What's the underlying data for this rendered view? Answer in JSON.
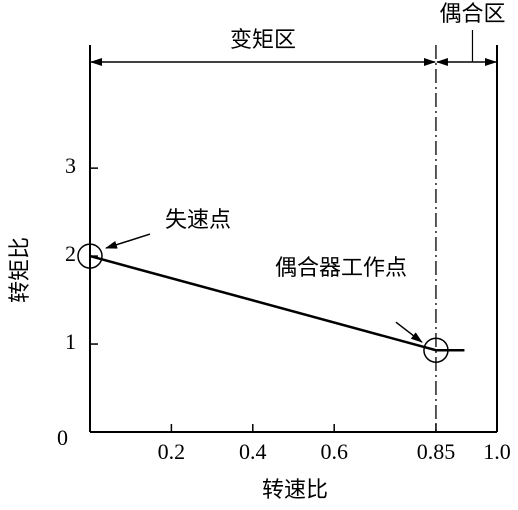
{
  "chart_data": {
    "type": "line",
    "x_label": "转速比",
    "y_label": "转矩比",
    "x": [
      0,
      0.85,
      0.92
    ],
    "series": [
      {
        "color": "#000000",
        "values": [
          2,
          0.93,
          0.93
        ]
      }
    ],
    "xlim": [
      0,
      1
    ],
    "ylim": [
      0,
      4.4
    ],
    "xticks": [
      0.2,
      0.4,
      0.6,
      0.85,
      {
        "value": 1,
        "label": "1.0"
      }
    ],
    "yticks": [
      0,
      1,
      2,
      3
    ],
    "annotations": [
      "失速点",
      "偶合器工作点"
    ],
    "regions": [
      {
        "label": "变矩区",
        "x": [
          0,
          0.85
        ]
      },
      {
        "label": "偶合区",
        "x": [
          0.85,
          1
        ]
      }
    ]
  }
}
